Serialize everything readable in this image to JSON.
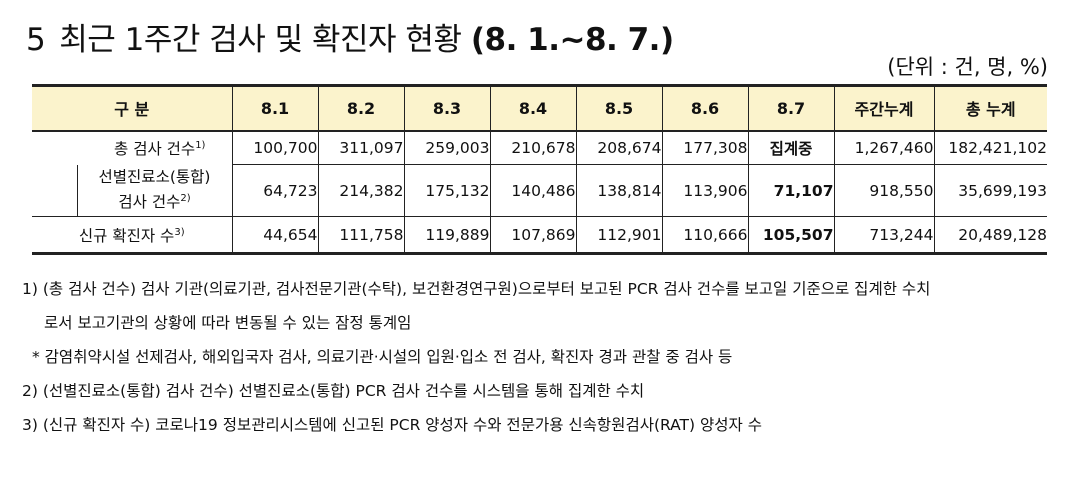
{
  "title": {
    "number": "5",
    "text": "최근 1주간 검사 및 확진자 현황",
    "dates": "(8. 1.~8. 7.)"
  },
  "unit_label": "(단위 : 건, 명, %)",
  "table": {
    "headers": [
      "구 분",
      "8.1",
      "8.2",
      "8.3",
      "8.4",
      "8.5",
      "8.6",
      "8.7",
      "주간누계",
      "총 누계"
    ],
    "rows": [
      {
        "label": "총 검사 건수",
        "footnote": "1)",
        "values": [
          "100,700",
          "311,097",
          "259,003",
          "210,678",
          "208,674",
          "177,308",
          "집계중",
          "1,267,460",
          "182,421,102"
        ]
      },
      {
        "label_line1": "선별진료소(통합)",
        "label_line2": "검사 건수",
        "footnote": "2)",
        "values": [
          "64,723",
          "214,382",
          "175,132",
          "140,486",
          "138,814",
          "113,906",
          "71,107",
          "918,550",
          "35,699,193"
        ]
      },
      {
        "label": "신규 확진자 수",
        "footnote": "3)",
        "values": [
          "44,654",
          "111,758",
          "119,889",
          "107,869",
          "112,901",
          "110,666",
          "105,507",
          "713,244",
          "20,489,128"
        ]
      }
    ]
  },
  "notes": {
    "n1_line1": "1) (총 검사 건수) 검사 기관(의료기관, 검사전문기관(수탁), 보건환경연구원)으로부터 보고된 PCR 검사 건수를 보고일 기준으로 집계한 수치",
    "n1_line2": "로서 보고기관의 상황에 따라 변동될 수 있는 잠정 통계임",
    "star": "* 감염취약시설 선제검사, 해외입국자 검사, 의료기관·시설의 입원·입소 전 검사, 확진자 경과 관찰 중 검사 등",
    "n2": "2) (선별진료소(통합) 검사 건수) 선별진료소(통합) PCR 검사 건수를 시스템을 통해 집계한 수치",
    "n3": "3) (신규 확진자 수) 코로나19 정보관리시스템에 신고된 PCR 양성자 수와 전문가용 신속항원검사(RAT) 양성자 수"
  }
}
